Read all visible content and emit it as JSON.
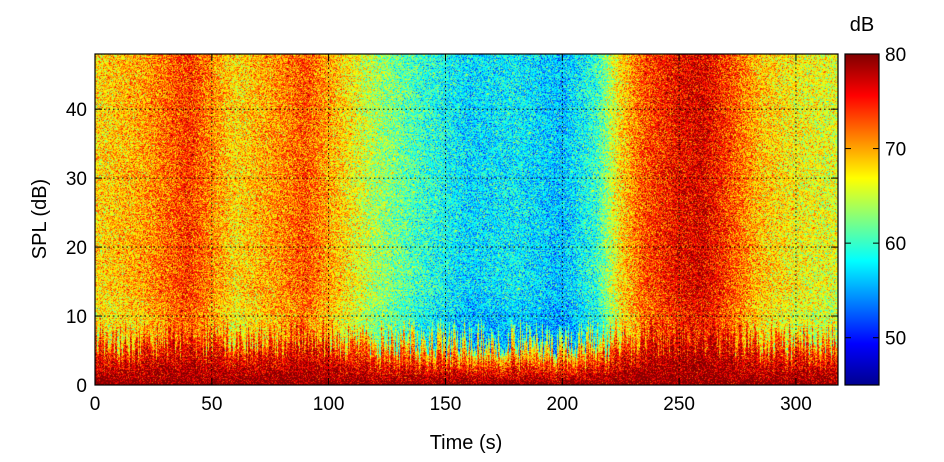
{
  "chart_data": {
    "type": "heatmap",
    "title": "",
    "xlabel": "Time (s)",
    "ylabel": "SPL (dB)",
    "colorbar_label": "dB",
    "xlim": [
      0,
      318
    ],
    "ylim": [
      0,
      48
    ],
    "clim": [
      45,
      80
    ],
    "x_ticks": [
      0,
      50,
      100,
      150,
      200,
      250,
      300
    ],
    "y_ticks": [
      0,
      10,
      20,
      30,
      40
    ],
    "colorbar_ticks": [
      50,
      60,
      70,
      80
    ],
    "grid": true,
    "colormap": "jet",
    "colormap_stops": [
      "#00008f",
      "#0000ff",
      "#0080ff",
      "#00ffff",
      "#80ff80",
      "#ffff00",
      "#ff8000",
      "#ff0000",
      "#800000"
    ],
    "noise_amplitude_db": 6,
    "time_profile": {
      "x": [
        0,
        20,
        40,
        50,
        60,
        80,
        90,
        100,
        120,
        140,
        160,
        180,
        200,
        215,
        225,
        235,
        250,
        260,
        270,
        285,
        300,
        318
      ],
      "level_db": [
        68,
        70,
        74,
        71,
        68,
        71,
        73,
        70,
        64,
        60,
        57,
        58,
        56,
        60,
        68,
        73,
        76,
        77,
        74,
        69,
        67,
        66
      ]
    },
    "low_spl_band": {
      "spl_max": 4,
      "level_db": 76
    }
  }
}
